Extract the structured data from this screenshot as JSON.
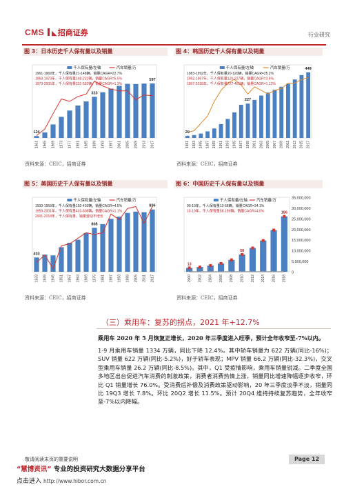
{
  "header": {
    "logo_cms": "CMS",
    "logo_cn": "招商证券",
    "section_label": "行业研究"
  },
  "figures": [
    {
      "caption": "图 3：日本历史千人保有量以及销量",
      "source": "资料来源：CEIC，招商证券",
      "legend": [
        "千人保有量/左轴",
        "汽车销量/万"
      ],
      "annotations": [
        "1961-1969年，千人保有量21-148辆，销量CAGR=22.7%",
        "1969-1973年，千人保有量148-231辆，销量CAGR=5.5%",
        "1973-2005年，千人保有量231-592辆，销量CAGR=1.3%"
      ],
      "point_labels": [
        "124",
        "323",
        "597"
      ]
    },
    {
      "caption": "图 4：韩国历史千人保有量以及销量",
      "source": "资料来源：CEIC，招商证券",
      "legend": [
        "千人保有量/左轴",
        "汽车销量/万"
      ],
      "annotations": [
        "1983-1992年，千人保有量20-120辆，销量CAGR=25.2%",
        "1992-1997年，千人保有量120-227辆，销量CAGR=3.6%",
        "1997-2018年，千人保有量227-461辆，销量CAGR=1.12%"
      ],
      "point_labels": [
        "20",
        "227",
        "449"
      ]
    },
    {
      "caption": "图 5：美国历史千人保有量以及销量",
      "source": "资料来源：CEIC，招商证券",
      "legend": [
        "千人保有量/左轴",
        "汽车销量/万"
      ],
      "annotations": [
        "1933-1959年，千人保有量192-403辆，销量CAGR=4.5%",
        "1959-2001年，千人保有量403-808辆，销量CAGR=1.1%",
        "2001-2018年，千人保有量、销量波动不增长"
      ],
      "point_labels": [
        "403",
        "808",
        "836"
      ]
    },
    {
      "caption": "图 6：中国历史千人保有量以及销量",
      "source": "资料来源：CEIC，招商证券",
      "legend": [
        "千人保有量/左轴",
        "汽车销量/万"
      ],
      "annotations": [
        "00-10年，千人保有量13-58辆，销量CAGR=24.1%",
        "10-19年，千人保有量58-186辆，销量CAGR=4.0%"
      ],
      "point_labels": [
        "13",
        "58",
        "186"
      ]
    }
  ],
  "chart_data": [
    {
      "type": "bar",
      "title": "日本历史千人保有量以及销量",
      "x": [
        "1961",
        "1965",
        "1969",
        "1973",
        "1977",
        "1981",
        "1985",
        "1989",
        "1993",
        "1997",
        "2001",
        "2005",
        "2009",
        "2013",
        "2017"
      ],
      "series": [
        {
          "name": "千人保有量/左轴",
          "type": "bar",
          "values": [
            21,
            60,
            148,
            231,
            300,
            355,
            400,
            450,
            500,
            540,
            570,
            592,
            590,
            595,
            597
          ]
        },
        {
          "name": "汽车销量/万",
          "type": "line",
          "values": [
            30,
            110,
            300,
            480,
            450,
            510,
            540,
            700,
            640,
            600,
            580,
            580,
            470,
            530,
            520
          ]
        }
      ],
      "ylim_left": [
        0,
        800
      ],
      "ylim_right": [
        0,
        900
      ]
    },
    {
      "type": "bar",
      "title": "韩国历史千人保有量以及销量",
      "x": [
        "1981",
        "1983",
        "1985",
        "1987",
        "1989",
        "1991",
        "1993",
        "1995",
        "1997",
        "1999",
        "2001",
        "2003",
        "2005",
        "2007",
        "2009",
        "2011",
        "2013",
        "2015",
        "2017"
      ],
      "series": [
        {
          "name": "千人保有量/左轴",
          "type": "bar",
          "values": [
            15,
            20,
            30,
            45,
            65,
            95,
            130,
            175,
            227,
            235,
            260,
            290,
            310,
            330,
            350,
            370,
            400,
            430,
            449
          ]
        },
        {
          "name": "汽车销量/万",
          "type": "line",
          "values": [
            15,
            20,
            40,
            60,
            100,
            130,
            150,
            160,
            145,
            120,
            140,
            130,
            120,
            130,
            135,
            150,
            150,
            160,
            165
          ]
        }
      ],
      "ylim_left": [
        0,
        500
      ],
      "ylim_right": [
        0,
        200
      ]
    },
    {
      "type": "bar",
      "title": "美国历史千人保有量以及销量",
      "x": [
        "1933",
        "1939",
        "1945",
        "1951",
        "1957",
        "1963",
        "1969",
        "1975",
        "1981",
        "1987",
        "1993",
        "1999",
        "2005",
        "2011",
        "2017"
      ],
      "series": [
        {
          "name": "千人保有量/左轴",
          "type": "bar",
          "values": [
            192,
            230,
            220,
            330,
            390,
            430,
            520,
            590,
            640,
            710,
            740,
            790,
            808,
            800,
            836
          ]
        },
        {
          "name": "汽车销量/万",
          "type": "line",
          "values": [
            250,
            450,
            80,
            700,
            750,
            900,
            1050,
            1000,
            1050,
            1550,
            1400,
            1700,
            1750,
            1300,
            1750
          ]
        }
      ],
      "ylim_left": [
        0,
        1000
      ],
      "ylim_right": [
        0,
        2000
      ]
    },
    {
      "type": "bar",
      "title": "中国历史千人保有量以及销量",
      "x": [
        "2000",
        "2002",
        "2004",
        "2006",
        "2008",
        "2010",
        "2012",
        "2014",
        "2016",
        "2018"
      ],
      "series": [
        {
          "name": "千人保有量/左轴",
          "type": "bar",
          "values": [
            13,
            16,
            21,
            28,
            40,
            58,
            80,
            105,
            140,
            186
          ]
        },
        {
          "name": "汽车销量/万",
          "type": "line",
          "values": [
            200,
            320,
            500,
            720,
            930,
            1800,
            1930,
            2350,
            2800,
            2800
          ]
        }
      ],
      "ylim_left": [
        0,
        250
      ],
      "ylim_right": [
        0,
        35000000
      ],
      "right_ticks": [
        "35,000,000",
        "30,000,000",
        "25,000,000",
        "20,000,000",
        "15,000,000",
        "10,000,000",
        "5,000,000",
        "0"
      ]
    }
  ],
  "section": {
    "title": "（三）乘用车：复苏的拐点，2021 年+12.7%"
  },
  "paragraphs": [
    "乘用车 2020 年 5 月恢复正增长，2020 年三季度进入旺季，预计全年收窄至-7%以内。",
    "1-9 月乘用车销量 1334 万辆，同比下降 12.4%。其中轿车销量为 622 万辆(同比-16%)；SUV 销量 622 万辆(同比-5.2%)，好于轿车表现；MPV 销量 66.2 万辆(同比-32.3%)，交叉型乘用车销量 26.2 万辆(同比-8.5%)。其中，Q1 受疫情影响，乘用车销量锐减。二季度全国多地区出台促进汽车消费的刺激政策，消费者消费热情上涨，销量同比增速降幅逐步收窄，环比 Q1 销量增长 76.0%。受消费后补偿及消费政策驱动影响，20 年三季度淡季不淡，销量同比 19Q3 增长 7.8%。环比 20Q2 增长 11.5%。预计 20Q4 维持持续复苏趋势，全年收窄至-7%以内降幅。"
  ],
  "footer": {
    "disclaimer": "敬请阅读末页的重要说明",
    "page": "Page 12",
    "banner_line1_highlight": "“慧博资讯”",
    "banner_line1_rest": " 专业的投资研究大数据分享平台",
    "banner_line2": "点击进入",
    "banner_url": "http://www.hibor.com.cn"
  },
  "colors": {
    "brand_red": "#c0282d",
    "bar_blue": "#4a7fc1",
    "line_red": "#d9342b",
    "line_orange": "#e08a2a",
    "line_gray": "#9a9a9a"
  }
}
